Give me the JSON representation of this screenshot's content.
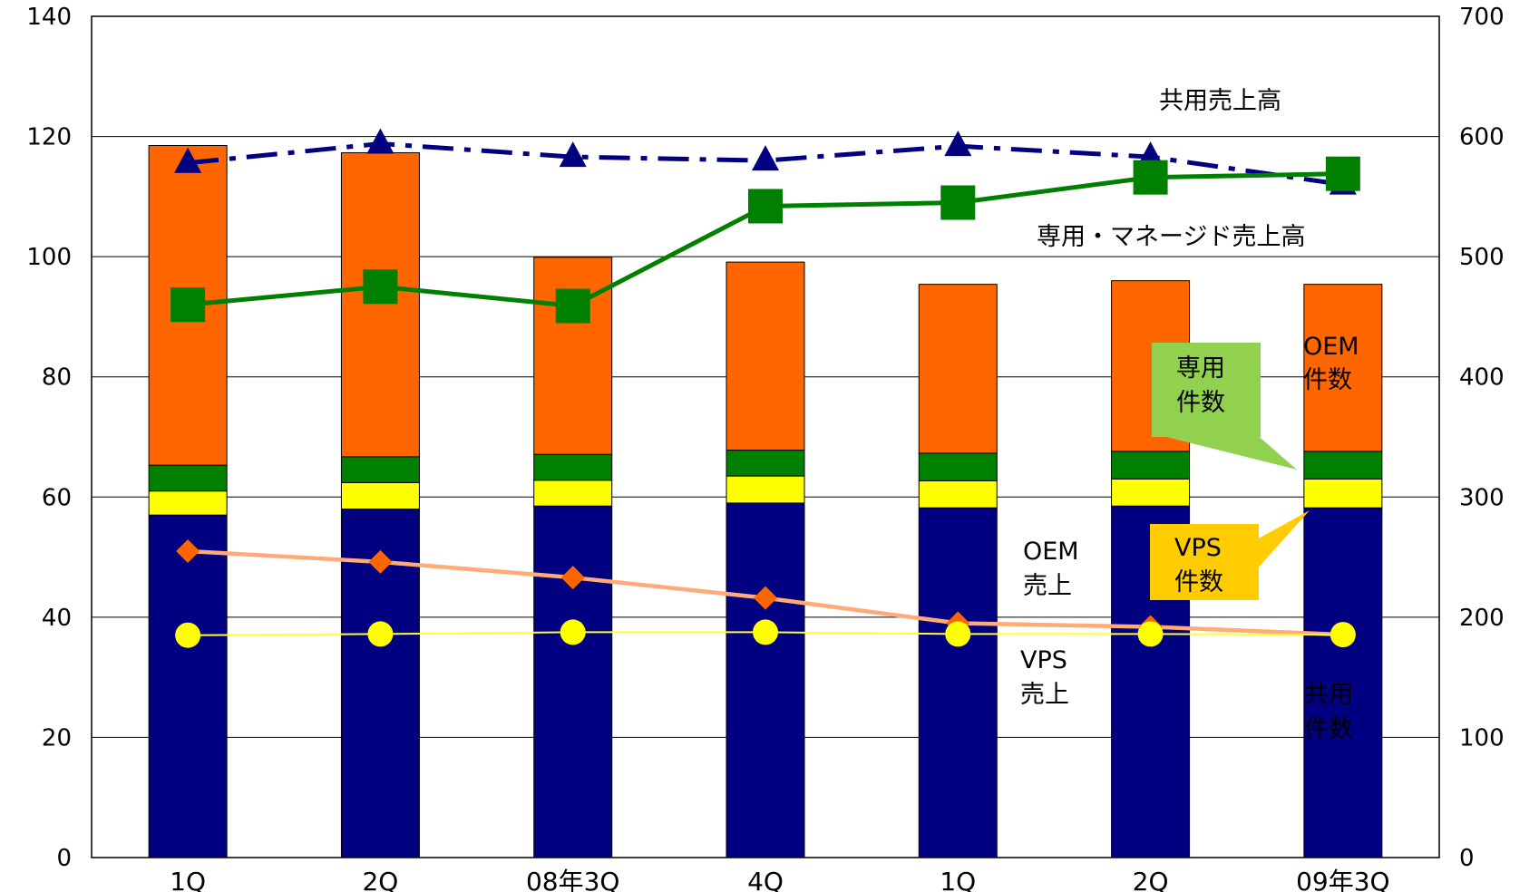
{
  "chart_data": {
    "type": "bar",
    "categories": [
      "1Q",
      "2Q",
      "08年3Q",
      "4Q",
      "1Q",
      "2Q",
      "09年3Q"
    ],
    "left_axis": {
      "ylim": [
        0,
        140
      ],
      "ticks": [
        "0",
        "20",
        "40",
        "60",
        "80",
        "100",
        "120",
        "140"
      ]
    },
    "right_axis": {
      "ylim": [
        0,
        700
      ],
      "ticks": [
        "0",
        "100",
        "200",
        "300",
        "400",
        "500",
        "600",
        "700"
      ]
    },
    "grid": true,
    "bar_series": [
      {
        "axis": "left",
        "color": "#000080",
        "values": [
          57,
          58,
          58.5,
          59,
          58.2,
          58.5,
          58.2
        ]
      },
      {
        "axis": "left",
        "color": "#FFFF00",
        "values": [
          4,
          4.4,
          4.3,
          4.5,
          4.5,
          4.5,
          4.8
        ]
      },
      {
        "axis": "left",
        "color": "#008000",
        "values": [
          4.3,
          4.3,
          4.3,
          4.3,
          4.6,
          4.6,
          4.6
        ]
      },
      {
        "axis": "left",
        "color": "#FF6600",
        "values": [
          53.2,
          50.6,
          32.8,
          31.3,
          28.1,
          28.4,
          27.8
        ]
      }
    ],
    "line_series": [
      {
        "axis": "right",
        "color": "#000080",
        "marker": "triangle",
        "dash": "dashdot",
        "values": [
          578,
          594,
          583,
          580,
          592,
          583,
          560
        ]
      },
      {
        "axis": "right",
        "color": "#008000",
        "marker": "square",
        "dash": "solid",
        "values": [
          460,
          475,
          459,
          542,
          545,
          566,
          569
        ]
      },
      {
        "axis": "left",
        "color": "#FF6600",
        "line_color": "#FFAA77",
        "marker": "diamond",
        "dash": "solid",
        "values": [
          51,
          49.2,
          46.6,
          43.2,
          39,
          38.4,
          37.1
        ]
      },
      {
        "axis": "left",
        "color": "#FFFF00",
        "line_color": "#FFFF33",
        "marker": "circle",
        "dash": "solid",
        "values": [
          37,
          37.2,
          37.5,
          37.5,
          37.2,
          37.2,
          37.1
        ]
      }
    ],
    "annotations": {
      "shared_sales": "共用売上高",
      "dedicated_sales": "専用・マネージド売上高",
      "oem_sales_1": "OEM",
      "oem_sales_2": "売上",
      "vps_sales_1": "VPS",
      "vps_sales_2": "売上",
      "oem_count_1": "OEM",
      "oem_count_2": "件数",
      "shared_count_1": "共用",
      "shared_count_2": "件数",
      "dedicated_count_1": "専用",
      "dedicated_count_2": "件数",
      "vps_count_1": "VPS",
      "vps_count_2": "件数"
    },
    "callout_colors": {
      "dedicated": "#92D050",
      "vps": "#FFCC00"
    },
    "annotation_colors": {
      "oem_count": "#FFFFFF",
      "shared_count": "#FFFFFF",
      "default": "#000000"
    }
  }
}
